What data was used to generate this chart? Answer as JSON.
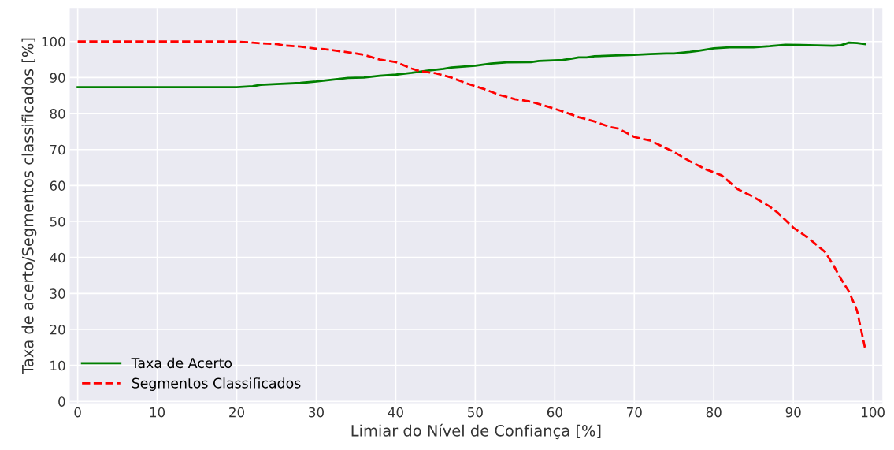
{
  "chart_data": {
    "type": "line",
    "xlabel": "Limiar do Nível de Confiança [%]",
    "ylabel": "Taxa de acerto/Segmentos classificados [%]",
    "xlim": [
      -1,
      101.2
    ],
    "ylim": [
      -0.5,
      109.3
    ],
    "xticks": [
      0,
      10,
      20,
      30,
      40,
      50,
      60,
      70,
      80,
      90,
      100
    ],
    "yticks": [
      0,
      10,
      20,
      30,
      40,
      50,
      60,
      70,
      80,
      90,
      100
    ],
    "grid": true,
    "legend": "bottom left",
    "series": [
      {
        "name": "Taxa de Acerto",
        "color": "#008000",
        "line_style": "solid",
        "x": [
          0,
          20,
          22,
          23,
          25,
          28,
          30,
          32,
          34,
          36,
          38,
          40,
          42,
          44,
          46,
          47,
          50,
          52,
          54,
          57,
          58,
          61,
          62,
          63,
          64,
          65,
          67,
          70,
          72,
          74,
          75,
          77,
          78,
          80,
          82,
          85,
          87,
          89,
          92,
          94,
          95,
          96,
          97,
          98,
          99
        ],
        "values": [
          87.3,
          87.3,
          87.6,
          88,
          88.2,
          88.5,
          88.9,
          89.4,
          89.9,
          90,
          90.5,
          90.8,
          91.3,
          91.9,
          92.4,
          92.8,
          93.3,
          93.9,
          94.2,
          94.3,
          94.6,
          94.9,
          95.2,
          95.6,
          95.6,
          95.9,
          96.1,
          96.3,
          96.5,
          96.7,
          96.7,
          97.1,
          97.4,
          98.1,
          98.4,
          98.4,
          98.7,
          99.1,
          99,
          98.9,
          98.8,
          99,
          99.7,
          99.6,
          99.3
        ]
      },
      {
        "name": "Segmentos Classificados",
        "color": "#ff0000",
        "line_style": "dashed",
        "x": [
          0,
          20,
          22,
          23,
          25,
          26,
          28,
          30,
          31,
          33,
          35,
          36,
          38,
          40,
          42,
          43,
          45,
          47,
          49,
          51,
          53,
          55,
          57,
          59,
          61,
          63,
          65,
          67,
          68,
          70,
          72,
          73,
          75,
          77,
          79,
          81,
          83,
          85,
          87,
          88,
          90,
          92,
          94,
          95,
          96,
          97,
          98,
          99
        ],
        "values": [
          100,
          100,
          99.7,
          99.5,
          99.3,
          98.9,
          98.6,
          98,
          97.9,
          97.3,
          96.7,
          96.3,
          95,
          94.3,
          92.5,
          91.8,
          91.2,
          90,
          88.3,
          86.9,
          85.2,
          84,
          83.3,
          82,
          80.6,
          79,
          77.8,
          76.2,
          75.8,
          73.5,
          72.5,
          71.4,
          69.3,
          66.7,
          64.5,
          62.8,
          59,
          56.8,
          54.2,
          52.5,
          48.3,
          45.2,
          41.5,
          38,
          34,
          30.5,
          25.3,
          15
        ]
      }
    ]
  }
}
